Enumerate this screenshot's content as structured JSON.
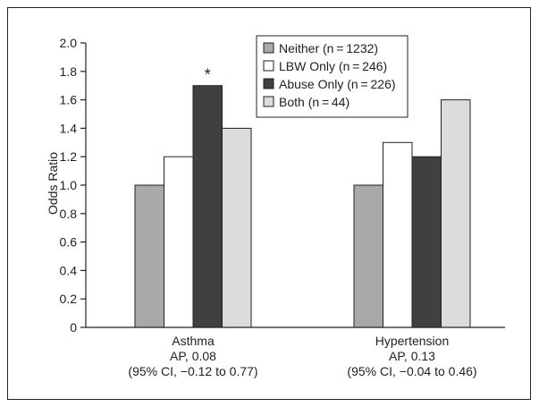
{
  "chart_data": {
    "type": "bar",
    "ylabel": "Odds Ratio",
    "ylim": [
      0,
      2.0
    ],
    "yticks": [
      "0",
      "0.2",
      "0.4",
      "0.6",
      "0.8",
      "1.0",
      "1.2",
      "1.4",
      "1.6",
      "1.8",
      "2.0"
    ],
    "categories": [
      {
        "lines": [
          "Asthma",
          "AP, 0.08",
          "(95% CI, −0.12 to 0.77)"
        ]
      },
      {
        "lines": [
          "Hypertension",
          "AP, 0.13",
          "(95% CI, −0.04 to 0.46)"
        ]
      }
    ],
    "series": [
      {
        "name": "Neither (n = 1232)",
        "color": "#a9a9a9",
        "values": [
          1.0,
          1.0
        ]
      },
      {
        "name": "LBW Only (n = 246)",
        "color": "#ffffff",
        "values": [
          1.2,
          1.3
        ]
      },
      {
        "name": "Abuse Only (n = 226)",
        "color": "#404040",
        "values": [
          1.7,
          1.2
        ]
      },
      {
        "name": "Both (n = 44)",
        "color": "#dcdcdc",
        "values": [
          1.4,
          1.6
        ]
      }
    ],
    "annotations": [
      {
        "text": "*",
        "category": 0,
        "series": 2
      }
    ],
    "legend_position": "top-right"
  }
}
